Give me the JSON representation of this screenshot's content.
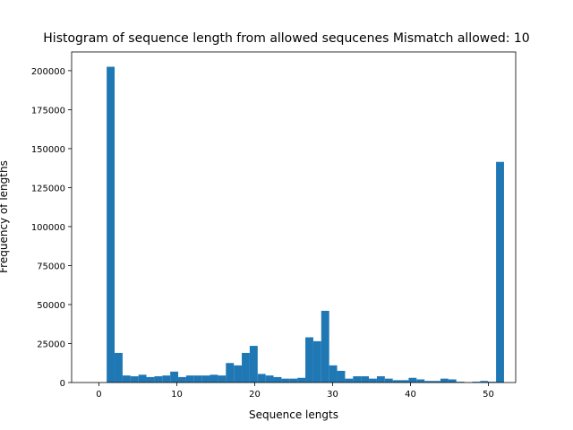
{
  "colors": {
    "bar": "#1f77b4",
    "axis": "#000000",
    "background": "#ffffff"
  },
  "chart_data": {
    "type": "bar",
    "title": "Histogram of sequence length from allowed sequcenes Mismatch allowed: 10",
    "xlabel": "Sequence lengts",
    "ylabel": "Frequency of lengths",
    "xlim": [
      -3.5,
      53.5
    ],
    "ylim": [
      0,
      212000
    ],
    "xticks": [
      0,
      10,
      20,
      30,
      40,
      50
    ],
    "yticks": [
      0,
      25000,
      50000,
      75000,
      100000,
      125000,
      150000,
      175000,
      200000
    ],
    "grid": false,
    "bin_edges": [
      1,
      52
    ],
    "bins": 50,
    "values": [
      202500,
      19000,
      4500,
      4000,
      5000,
      3500,
      4000,
      4500,
      7000,
      3500,
      4500,
      4500,
      4500,
      5000,
      4500,
      12500,
      11000,
      19000,
      23500,
      5500,
      4500,
      3500,
      2500,
      2500,
      3000,
      29000,
      26500,
      46000,
      11000,
      7500,
      2500,
      4000,
      4000,
      2500,
      4000,
      2500,
      1500,
      1500,
      3000,
      2000,
      1000,
      1000,
      2500,
      2000,
      500,
      0,
      500,
      1000,
      500,
      141500
    ]
  }
}
